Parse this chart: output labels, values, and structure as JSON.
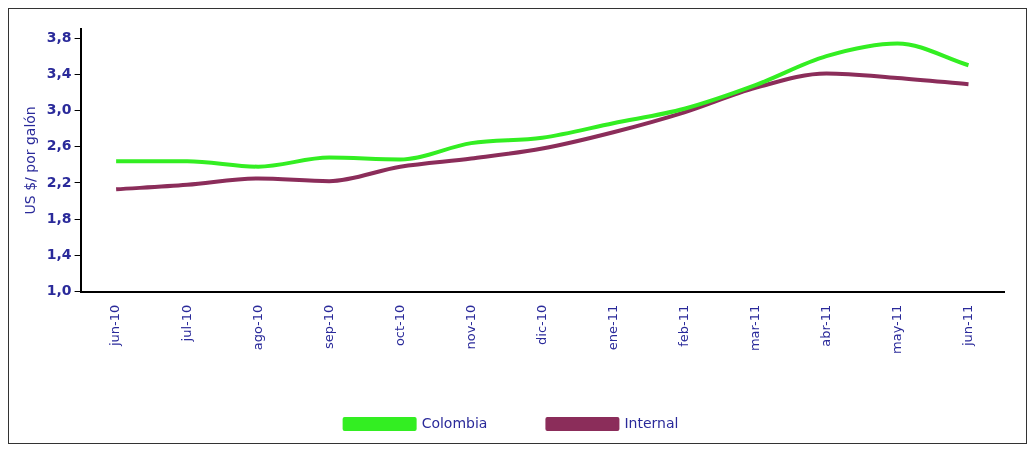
{
  "chart_data": {
    "type": "line",
    "ylabel": "US $/ por galón",
    "categories": [
      "jun-10",
      "jul-10",
      "ago-10",
      "sep-10",
      "oct-10",
      "nov-10",
      "dic-10",
      "ene-11",
      "feb-11",
      "mar-11",
      "abr-11",
      "may-11",
      "jun-11"
    ],
    "series": [
      {
        "name": "Colombia",
        "color": "#33ee22",
        "values": [
          2.44,
          2.44,
          2.38,
          2.48,
          2.46,
          2.64,
          2.7,
          2.86,
          3.02,
          3.28,
          3.6,
          3.74,
          3.5
        ]
      },
      {
        "name": "Internal",
        "color": "#8b2d5a",
        "values": [
          2.13,
          2.18,
          2.25,
          2.22,
          2.38,
          2.47,
          2.58,
          2.76,
          2.98,
          3.25,
          3.41,
          3.36,
          3.29
        ]
      }
    ],
    "ylim": [
      1.0,
      3.9
    ],
    "yticks": [
      {
        "value": 1.0,
        "label": "1,0"
      },
      {
        "value": 1.4,
        "label": "1,4"
      },
      {
        "value": 1.8,
        "label": "1,8"
      },
      {
        "value": 2.2,
        "label": "2,2"
      },
      {
        "value": 2.6,
        "label": "2,6"
      },
      {
        "value": 3.0,
        "label": "3,0"
      },
      {
        "value": 3.4,
        "label": "3,4"
      },
      {
        "value": 3.8,
        "label": "3,8"
      }
    ],
    "grid": false,
    "legend": "bottom",
    "marker": "none",
    "line_style": "solid"
  }
}
